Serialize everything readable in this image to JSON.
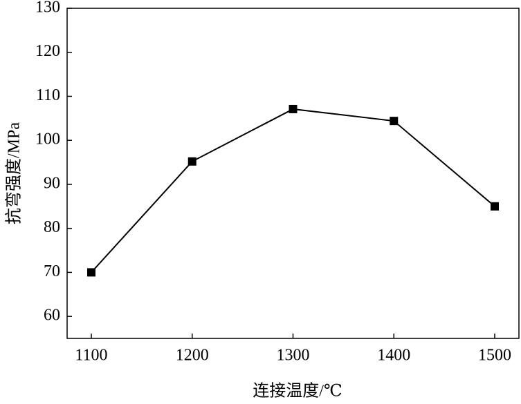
{
  "chart_data": {
    "type": "line",
    "x": [
      1100,
      1200,
      1300,
      1400,
      1500
    ],
    "series": [
      {
        "color": "#000000",
        "values": [
          70,
          95.2,
          107.1,
          104.4,
          85
        ]
      }
    ],
    "xlabel": "连接温度/℃",
    "ylabel": "抗弯强度/MPa",
    "xlim": [
      1076,
      1524
    ],
    "xticks": [
      1100,
      1200,
      1300,
      1400,
      1500
    ],
    "ylim": [
      55,
      130
    ],
    "yticks": [
      60,
      70,
      80,
      90,
      100,
      110,
      120,
      130
    ],
    "grid": false
  }
}
